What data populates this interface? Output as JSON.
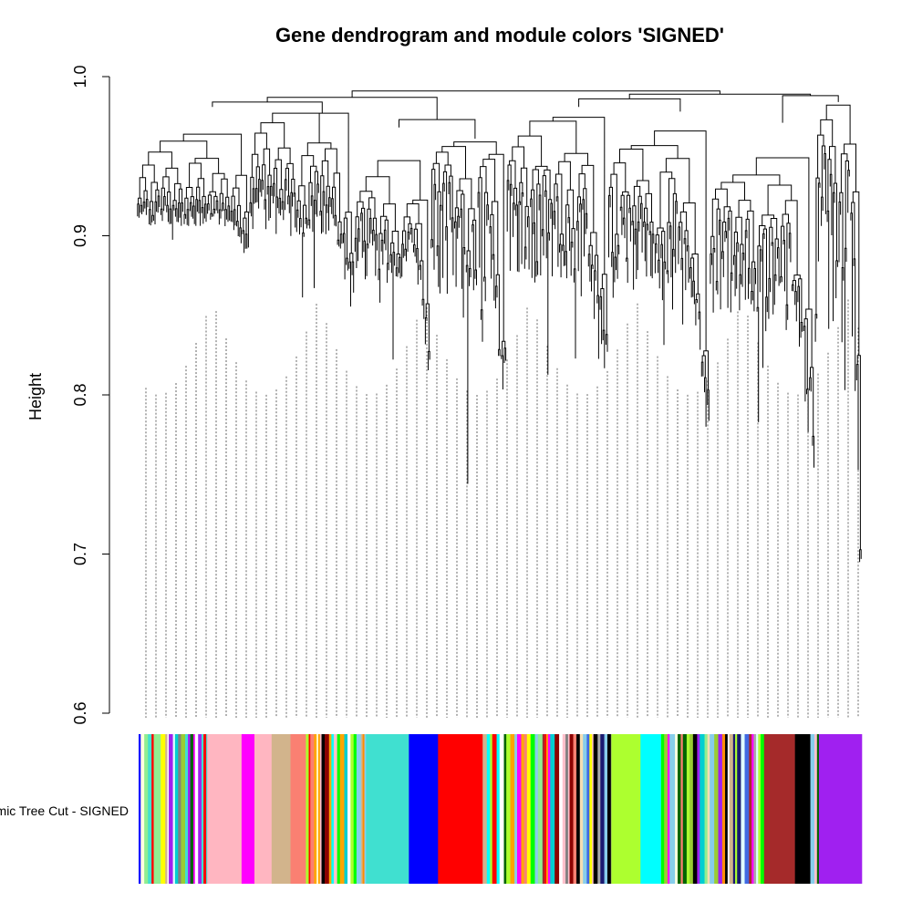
{
  "chart_data": {
    "type": "dendrogram",
    "title": "Gene dendrogram and module colors 'SIGNED'",
    "ylabel": "Height",
    "ylim": [
      0.6,
      1.0
    ],
    "yticks": [
      "0.6",
      "0.7",
      "0.8",
      "0.9",
      "1.0"
    ],
    "color_bar_label": "Dynamic Tree Cut - SIGNED",
    "major_clusters": [
      {
        "from": 0.0,
        "to": 0.155,
        "merge": 0.985,
        "top": 0.92,
        "depth": 0.88
      },
      {
        "from": 0.155,
        "to": 0.3,
        "merge": 0.978,
        "top": 0.93,
        "depth": 0.84
      },
      {
        "from": 0.3,
        "to": 0.405,
        "merge": 0.972,
        "top": 0.91,
        "depth": 0.8
      },
      {
        "from": 0.405,
        "to": 0.51,
        "merge": 0.965,
        "top": 0.93,
        "depth": 0.74
      },
      {
        "from": 0.51,
        "to": 0.65,
        "merge": 0.985,
        "top": 0.93,
        "depth": 0.76
      },
      {
        "from": 0.65,
        "to": 0.79,
        "merge": 0.982,
        "top": 0.92,
        "depth": 0.74
      },
      {
        "from": 0.79,
        "to": 0.935,
        "merge": 0.975,
        "top": 0.91,
        "depth": 0.73
      },
      {
        "from": 0.935,
        "to": 1.0,
        "merge": 0.988,
        "top": 0.95,
        "depth": 0.61
      }
    ],
    "top_merges": [
      {
        "left": 0,
        "right": 1,
        "height": 0.984
      },
      {
        "left": 2,
        "right": 3,
        "height": 0.973
      },
      {
        "left": 4,
        "right": 5,
        "height": 0.986
      },
      {
        "left": 6,
        "right": 7,
        "height": 0.988
      },
      {
        "left": "A",
        "right": "B",
        "height": 0.987
      },
      {
        "left": "C",
        "right": "D",
        "height": 0.989
      },
      {
        "left": "E",
        "right": "F",
        "height": 0.991
      }
    ],
    "module_colors": [
      {
        "color": "mixed",
        "width": 0.08
      },
      {
        "color": "#ffb6c1",
        "width": 0.04
      },
      {
        "color": "#ff00ff",
        "width": 0.015
      },
      {
        "color": "#ffb6c1",
        "width": 0.02
      },
      {
        "color": "#d2b48c",
        "width": 0.022
      },
      {
        "color": "#fa8072",
        "width": 0.018
      },
      {
        "color": "mixed",
        "width": 0.07
      },
      {
        "color": "#40e0d0",
        "width": 0.05
      },
      {
        "color": "#0000ff",
        "width": 0.034
      },
      {
        "color": "#ff0000",
        "width": 0.052
      },
      {
        "color": "mixed",
        "width": 0.15
      },
      {
        "color": "#adff2f",
        "width": 0.034
      },
      {
        "color": "#00ffff",
        "width": 0.024
      },
      {
        "color": "mixed",
        "width": 0.12
      },
      {
        "color": "#a52a2a",
        "width": 0.036
      },
      {
        "color": "#000000",
        "width": 0.018
      },
      {
        "color": "mixed",
        "width": 0.01
      },
      {
        "color": "#a020f0",
        "width": 0.05
      }
    ],
    "palette": [
      "#40e0d0",
      "#0000ff",
      "#a52a2a",
      "#ffff00",
      "#00ff00",
      "#ff0000",
      "#000000",
      "#ffc0cb",
      "#ff00ff",
      "#a020f0",
      "#adff2f",
      "#d2b48c",
      "#fa8072",
      "#00ffff",
      "#191970",
      "#e0ffff",
      "#808080",
      "#90ee90",
      "#ffffe0",
      "#4169e1",
      "#8b0000",
      "#006400",
      "#00ced1",
      "#a9a9a9",
      "#ffa500",
      "#ff8c00",
      "#ffffff",
      "#87ceeb",
      "#9acd32",
      "#f5deb3"
    ]
  }
}
